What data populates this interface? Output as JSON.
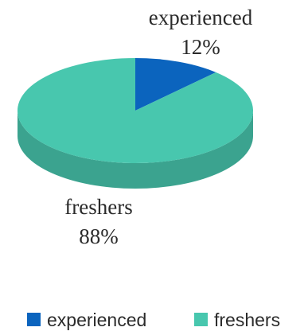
{
  "chart_data": {
    "type": "pie",
    "title": "",
    "style": "3d",
    "legend_position": "bottom",
    "slices": [
      {
        "label": "experienced",
        "value": 12,
        "value_label": "12%",
        "color": "#0B64BE"
      },
      {
        "label": "freshers",
        "value": 88,
        "value_label": "88%",
        "color": "#48C7AE"
      }
    ],
    "legend": [
      {
        "label": "experienced",
        "color": "#0B64BE"
      },
      {
        "label": "freshers",
        "color": "#48C7AE"
      }
    ]
  }
}
